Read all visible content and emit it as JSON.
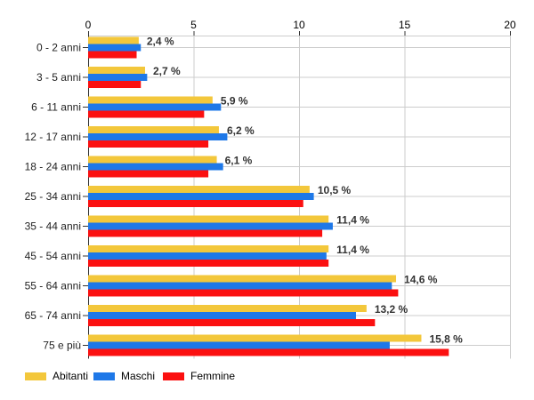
{
  "chart_data": {
    "type": "bar",
    "orientation": "horizontal",
    "title": "",
    "xlabel": "",
    "ylabel": "",
    "xlim": [
      0,
      20
    ],
    "x_ticks": [
      0,
      5,
      10,
      15,
      20
    ],
    "x_axis_position": "top",
    "grid": true,
    "legend_position": "bottom",
    "categories": [
      "0 - 2 anni",
      "3 - 5 anni",
      "6 - 11 anni",
      "12 - 17 anni",
      "18 - 24 anni",
      "25 - 34 anni",
      "35 - 44 anni",
      "45 - 54 anni",
      "55 - 64 anni",
      "65 - 74 anni",
      "75 e più"
    ],
    "series": [
      {
        "name": "Abitanti",
        "color": "#F3C73B",
        "values": [
          2.4,
          2.7,
          5.9,
          6.2,
          6.1,
          10.5,
          11.4,
          11.4,
          14.6,
          13.2,
          15.8
        ]
      },
      {
        "name": "Maschi",
        "color": "#1E78E8",
        "values": [
          2.5,
          2.8,
          6.3,
          6.6,
          6.4,
          10.7,
          11.6,
          11.3,
          14.4,
          12.7,
          14.3
        ]
      },
      {
        "name": "Femmine",
        "color": "#FB1010",
        "values": [
          2.3,
          2.5,
          5.5,
          5.7,
          5.7,
          10.2,
          11.1,
          11.4,
          14.7,
          13.6,
          17.1
        ]
      }
    ],
    "data_labels": [
      "2,4 %",
      "2,7 %",
      "5,9 %",
      "6,2 %",
      "6,1 %",
      "10,5 %",
      "11,4 %",
      "11,4 %",
      "14,6 %",
      "13,2 %",
      "15,8 %"
    ],
    "grid_color": "#CCCCCC",
    "axis_color": "#333333",
    "value_label_color": "#333333"
  }
}
